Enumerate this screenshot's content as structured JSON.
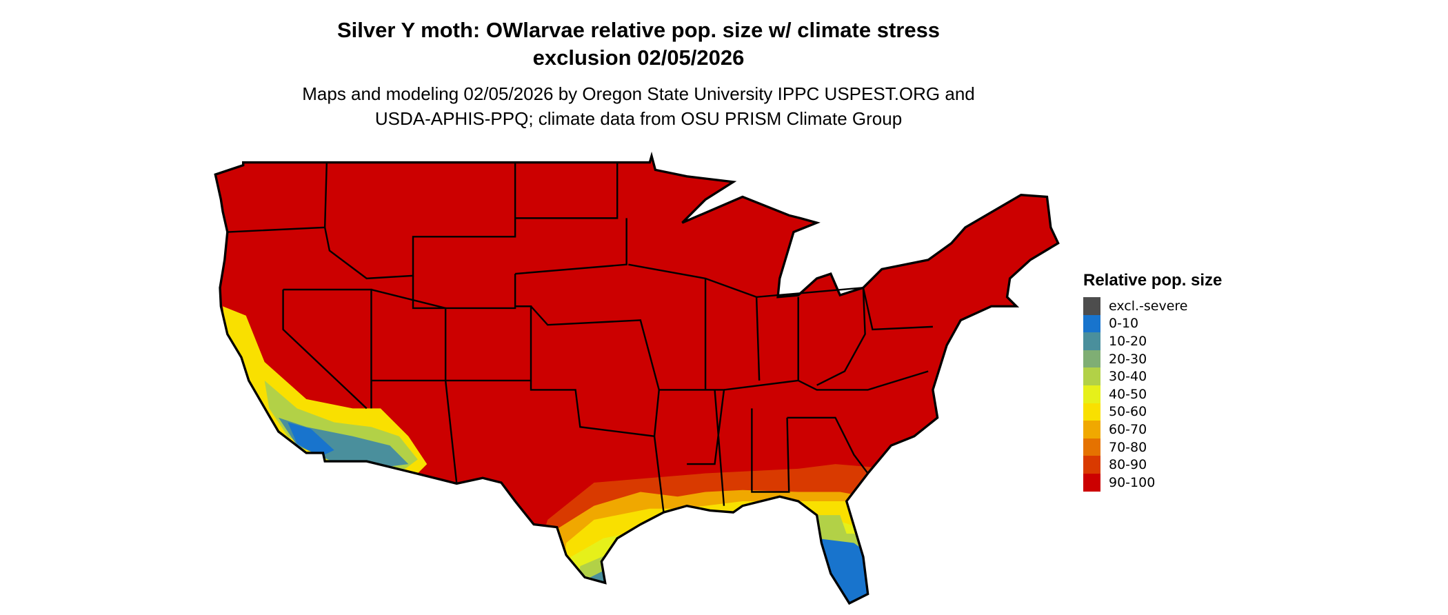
{
  "title": {
    "line1": "Silver Y moth: OWlarvae relative pop. size w/ climate stress",
    "line2": "exclusion 02/05/2026"
  },
  "subtitle": {
    "line1": "Maps and modeling 02/05/2026 by Oregon State University IPPC USPEST.ORG and",
    "line2": "USDA-APHIS-PPQ; climate data from OSU PRISM Climate Group"
  },
  "legend": {
    "title": "Relative pop. size",
    "items": [
      {
        "label": "excl.-severe",
        "color": "#4d4d4d"
      },
      {
        "label": "0-10",
        "color": "#1874cd"
      },
      {
        "label": "10-20",
        "color": "#4a8f9c"
      },
      {
        "label": "20-30",
        "color": "#7fae74"
      },
      {
        "label": "30-40",
        "color": "#b2d147"
      },
      {
        "label": "40-50",
        "color": "#e6f01a"
      },
      {
        "label": "50-60",
        "color": "#f9e000"
      },
      {
        "label": "60-70",
        "color": "#f0a800"
      },
      {
        "label": "70-80",
        "color": "#e57200"
      },
      {
        "label": "80-90",
        "color": "#d93a00"
      },
      {
        "label": "90-100",
        "color": "#cc0000"
      }
    ]
  },
  "map": {
    "region": "Contiguous United States",
    "dominant_class": "90-100",
    "border_color": "#000000"
  }
}
